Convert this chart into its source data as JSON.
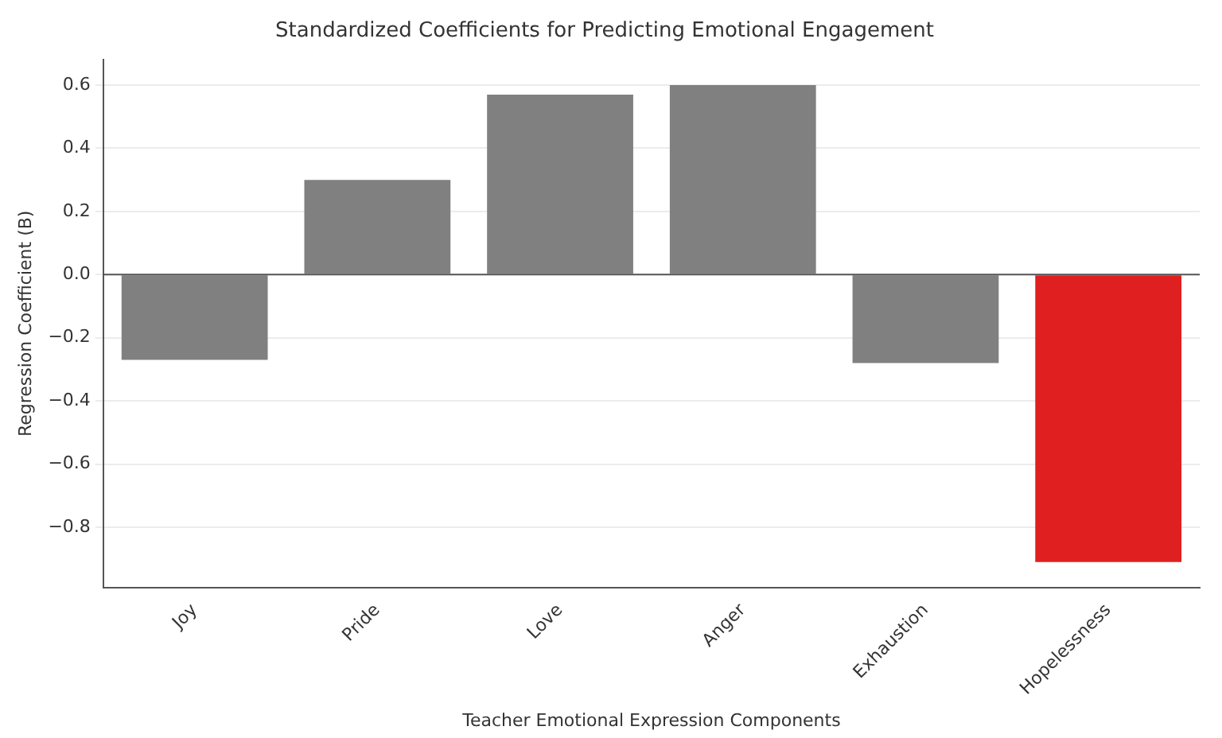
{
  "chart_data": {
    "type": "bar",
    "title": "Standardized Coefficients for Predicting Emotional Engagement",
    "xlabel": "Teacher Emotional Expression Components",
    "ylabel": "Regression Coefficient (B)",
    "categories": [
      "Joy",
      "Pride",
      "Love",
      "Anger",
      "Exhaustion",
      "Hopelessness"
    ],
    "values": [
      -0.27,
      0.3,
      0.57,
      0.6,
      -0.28,
      -0.91
    ],
    "colors": [
      "#808080",
      "#808080",
      "#808080",
      "#808080",
      "#808080",
      "#e02020"
    ],
    "ylim": [
      -0.99,
      0.68
    ],
    "yticks": [
      {
        "value": -0.8,
        "label": "−0.8"
      },
      {
        "value": -0.6,
        "label": "−0.6"
      },
      {
        "value": -0.4,
        "label": "−0.4"
      },
      {
        "value": -0.2,
        "label": "−0.2"
      },
      {
        "value": 0,
        "label": "0.0"
      },
      {
        "value": 0.2,
        "label": "0.2"
      },
      {
        "value": 0.4,
        "label": "0.4"
      },
      {
        "value": 0.6,
        "label": "0.6"
      }
    ],
    "grid": "y"
  }
}
